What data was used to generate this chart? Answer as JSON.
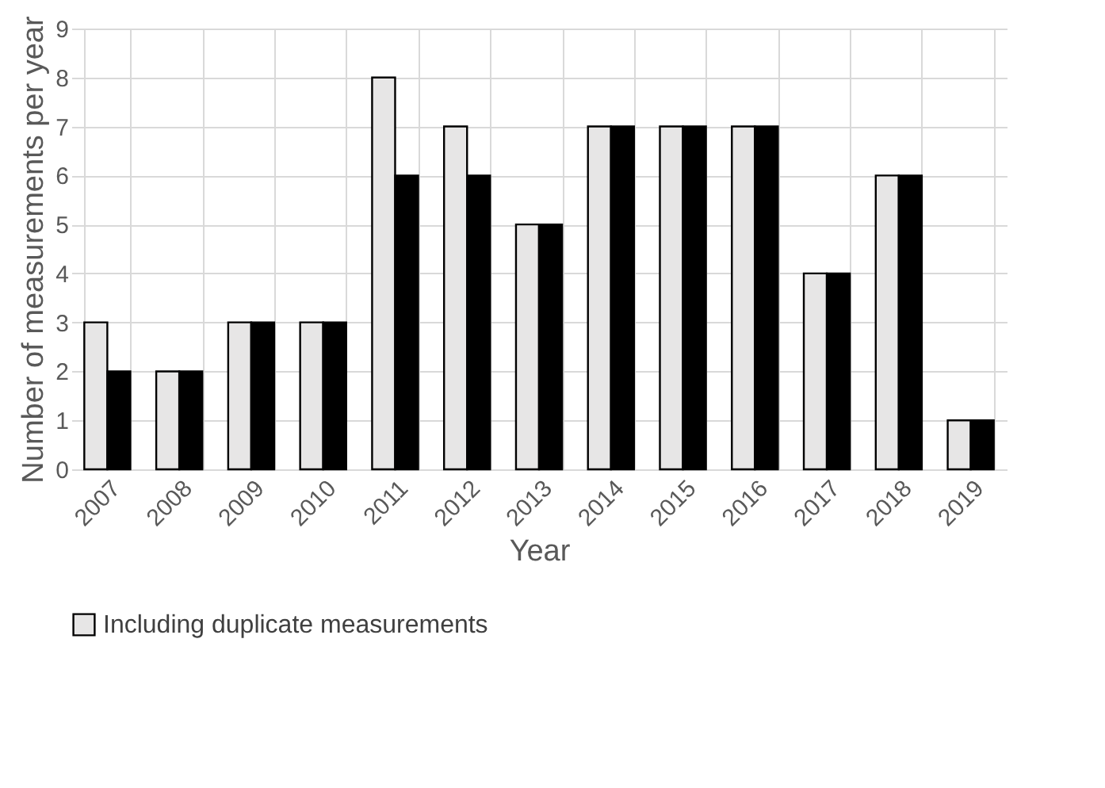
{
  "chart_data": {
    "type": "bar",
    "xlabel": "Year",
    "ylabel": "Number of measurements per year",
    "categories": [
      "2007",
      "2008",
      "2009",
      "2010",
      "2011",
      "2012",
      "2013",
      "2014",
      "2015",
      "2016",
      "2017",
      "2018",
      "2019"
    ],
    "series": [
      {
        "name": "Including duplicate measurements",
        "color": "#e7e6e6",
        "values": [
          3,
          2,
          3,
          3,
          8,
          7,
          5,
          7,
          7,
          7,
          4,
          6,
          1
        ]
      },
      {
        "color": "#000000",
        "values": [
          2,
          2,
          3,
          3,
          6,
          6,
          5,
          7,
          7,
          7,
          4,
          6,
          1
        ]
      }
    ],
    "ylim": [
      0,
      9
    ],
    "yticks": [
      0,
      1,
      2,
      3,
      4,
      5,
      6,
      7,
      8,
      9
    ],
    "grid": true,
    "legend": "bottom"
  }
}
